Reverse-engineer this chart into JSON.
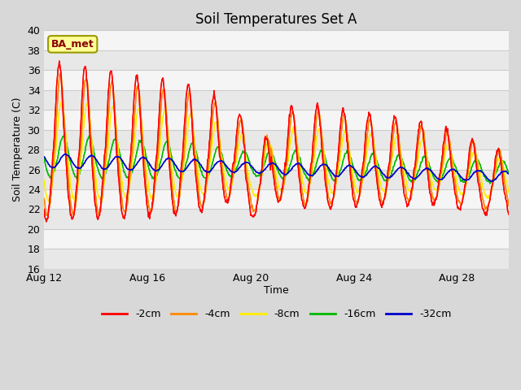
{
  "title": "Soil Temperatures Set A",
  "xlabel": "Time",
  "ylabel": "Soil Temperature (C)",
  "ylim": [
    16,
    40
  ],
  "yticks": [
    16,
    18,
    20,
    22,
    24,
    26,
    28,
    30,
    32,
    34,
    36,
    38,
    40
  ],
  "date_labels": [
    "Aug 12",
    "Aug 16",
    "Aug 20",
    "Aug 24",
    "Aug 28"
  ],
  "date_ticks_days": [
    0,
    4,
    8,
    12,
    16
  ],
  "total_days": 19,
  "pts_per_day": 48,
  "annotation_text": "BA_met",
  "annotation_bg": "#ffff99",
  "annotation_border": "#999900",
  "annotation_textcolor": "#880000",
  "fig_bg": "#d8d8d8",
  "plot_bg": "#ffffff",
  "grid_color": "#cccccc",
  "colors": {
    "-2cm": "#ff0000",
    "-4cm": "#ff8800",
    "-8cm": "#ffee00",
    "-16cm": "#00bb00",
    "-32cm": "#0000cc"
  },
  "legend_labels": [
    "-2cm",
    "-4cm",
    "-8cm",
    "-16cm",
    "-32cm"
  ],
  "line_width": 1.0
}
